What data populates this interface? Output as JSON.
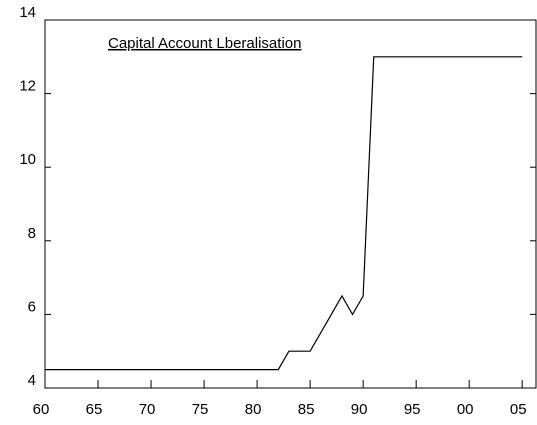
{
  "chart_data": {
    "type": "line",
    "title": "Capital Account Lberalisation",
    "x": [
      1960,
      1961,
      1962,
      1963,
      1964,
      1965,
      1966,
      1967,
      1968,
      1969,
      1970,
      1971,
      1972,
      1973,
      1974,
      1975,
      1976,
      1977,
      1978,
      1979,
      1980,
      1981,
      1982,
      1983,
      1984,
      1985,
      1986,
      1987,
      1988,
      1989,
      1990,
      1991,
      1992,
      1993,
      1994,
      1995,
      1996,
      1997,
      1998,
      1999,
      2000,
      2001,
      2002,
      2003,
      2004,
      2005
    ],
    "series": [
      {
        "color": "#000000",
        "values": [
          4.5,
          4.5,
          4.5,
          4.5,
          4.5,
          4.5,
          4.5,
          4.5,
          4.5,
          4.5,
          4.5,
          4.5,
          4.5,
          4.5,
          4.5,
          4.5,
          4.5,
          4.5,
          4.5,
          4.5,
          4.5,
          4.5,
          4.5,
          5,
          5,
          5,
          5.5,
          6,
          6.5,
          6,
          6.5,
          13,
          13,
          13,
          13,
          13,
          13,
          13,
          13,
          13,
          13,
          13,
          13,
          13,
          13,
          13
        ]
      }
    ],
    "xlim": [
      1960,
      2006.3
    ],
    "xticks": [
      {
        "value": 1960,
        "label": "60"
      },
      {
        "value": 1965,
        "label": "65"
      },
      {
        "value": 1970,
        "label": "70"
      },
      {
        "value": 1975,
        "label": "75"
      },
      {
        "value": 1980,
        "label": "80"
      },
      {
        "value": 1985,
        "label": "85"
      },
      {
        "value": 1990,
        "label": "90"
      },
      {
        "value": 1995,
        "label": "95"
      },
      {
        "value": 2000,
        "label": "00"
      },
      {
        "value": 2005,
        "label": "05"
      }
    ],
    "ylim": [
      4,
      14
    ],
    "yticks": [
      4,
      6,
      8,
      10,
      12,
      14
    ],
    "grid": false
  }
}
